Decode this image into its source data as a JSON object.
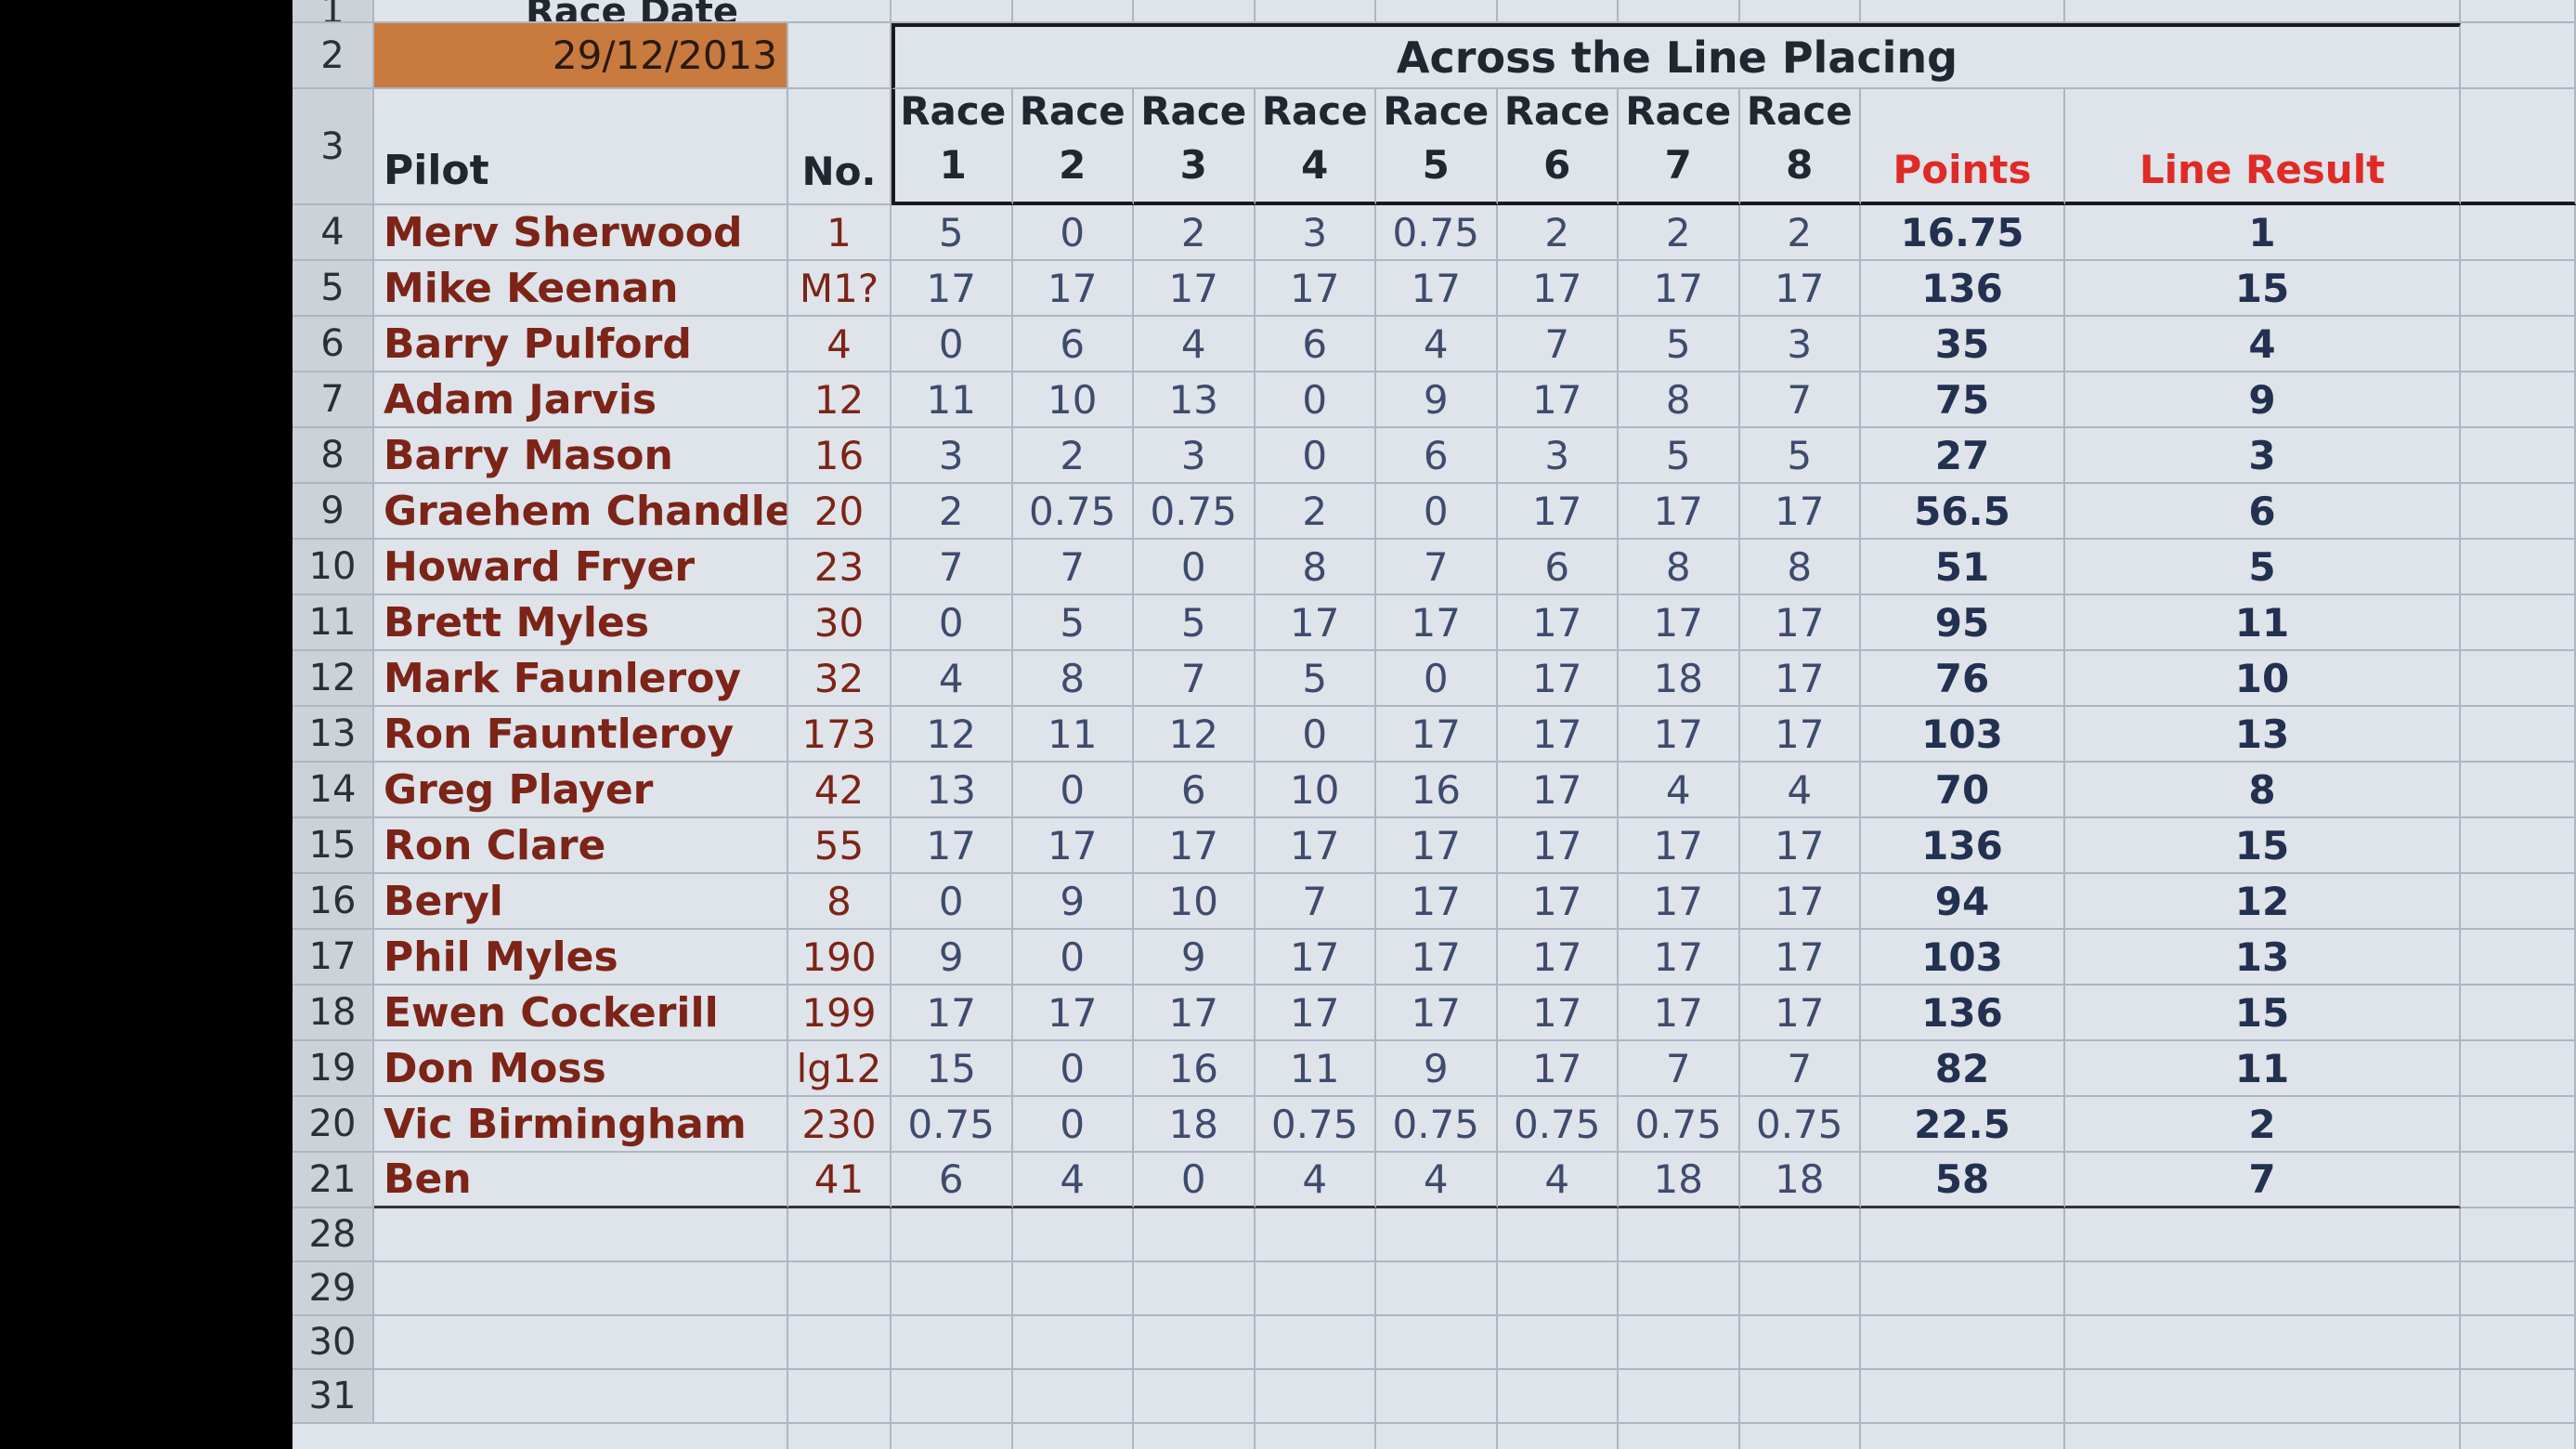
{
  "race_date_label": "Race Date",
  "race_date": "29/12/2013",
  "group_title": "Across the Line Placing",
  "columns": [
    "Pilot",
    "No.",
    "Race 1",
    "Race 2",
    "Race 3",
    "Race 4",
    "Race 5",
    "Race 6",
    "Race 7",
    "Race 8",
    "Points",
    "Line Result"
  ],
  "row_numbers": [
    1,
    2,
    3,
    4,
    5,
    6,
    7,
    8,
    9,
    10,
    11,
    12,
    13,
    14,
    15,
    16,
    17,
    18,
    19,
    20,
    21,
    28,
    29,
    30,
    31
  ],
  "rows": [
    [
      "Merv Sherwood",
      1,
      5,
      0,
      2,
      3,
      0.75,
      2,
      2,
      2,
      16.75,
      1
    ],
    [
      "Mike Keenan",
      "M1?",
      17,
      17,
      17,
      17,
      17,
      17,
      17,
      17,
      136,
      15
    ],
    [
      "Barry Pulford",
      4,
      0,
      6,
      4,
      6,
      4,
      7,
      5,
      3,
      35,
      4
    ],
    [
      "Adam Jarvis",
      12,
      11,
      10,
      13,
      0,
      9,
      17,
      8,
      7,
      75,
      9
    ],
    [
      "Barry Mason",
      16,
      3,
      2,
      3,
      0,
      6,
      3,
      5,
      5,
      27,
      3
    ],
    [
      "Graehem Chandler",
      20,
      2,
      0.75,
      0.75,
      2,
      0,
      17,
      17,
      17,
      56.5,
      6
    ],
    [
      "Howard Fryer",
      23,
      7,
      7,
      0,
      8,
      7,
      6,
      8,
      8,
      51,
      5
    ],
    [
      "Brett Myles",
      30,
      0,
      5,
      5,
      17,
      17,
      17,
      17,
      17,
      95,
      11
    ],
    [
      "Mark Faunleroy",
      32,
      4,
      8,
      7,
      5,
      0,
      17,
      18,
      17,
      76,
      10
    ],
    [
      "Ron Fauntleroy",
      173,
      12,
      11,
      12,
      0,
      17,
      17,
      17,
      17,
      103,
      13
    ],
    [
      "Greg Player",
      42,
      13,
      0,
      6,
      10,
      16,
      17,
      4,
      4,
      70,
      8
    ],
    [
      "Ron Clare",
      55,
      17,
      17,
      17,
      17,
      17,
      17,
      17,
      17,
      136,
      15
    ],
    [
      "Beryl",
      8,
      0,
      9,
      10,
      7,
      17,
      17,
      17,
      17,
      94,
      12
    ],
    [
      "Phil Myles",
      190,
      9,
      0,
      9,
      17,
      17,
      17,
      17,
      17,
      103,
      13
    ],
    [
      "Ewen Cockerill",
      199,
      17,
      17,
      17,
      17,
      17,
      17,
      17,
      17,
      136,
      15
    ],
    [
      "Don Moss",
      "lg12",
      15,
      0,
      16,
      11,
      9,
      17,
      7,
      7,
      82,
      11
    ],
    [
      "Vic Birmingham",
      230,
      0.75,
      0,
      18,
      0.75,
      0.75,
      0.75,
      0.75,
      0.75,
      22.5,
      2
    ],
    [
      "Ben",
      41,
      6,
      4,
      0,
      4,
      4,
      4,
      18,
      18,
      58,
      7
    ]
  ]
}
